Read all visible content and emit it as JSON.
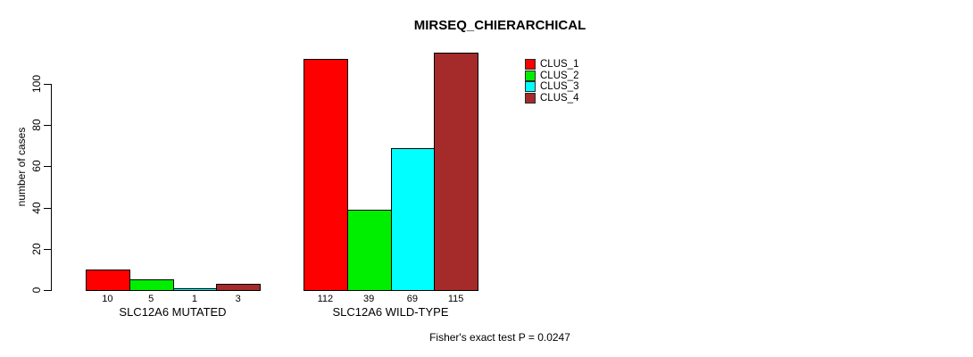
{
  "chart_data": {
    "type": "bar",
    "title": "MIRSEQ_CHIERARCHICAL",
    "ylabel": "number of cases",
    "xlabel": "",
    "yticks": [
      0,
      20,
      40,
      60,
      80,
      100
    ],
    "ylim": [
      0,
      117
    ],
    "grid": false,
    "legend_position": "top-right",
    "categories": [
      "SLC12A6 MUTATED",
      "SLC12A6 WILD-TYPE"
    ],
    "series": [
      {
        "name": "CLUS_1",
        "color": "#ff0000",
        "values": [
          10,
          112
        ]
      },
      {
        "name": "CLUS_2",
        "color": "#00ee00",
        "values": [
          5,
          39
        ]
      },
      {
        "name": "CLUS_3",
        "color": "#00ffff",
        "values": [
          1,
          69
        ]
      },
      {
        "name": "CLUS_4",
        "color": "#a52a2a",
        "values": [
          3,
          115
        ]
      }
    ],
    "bar_value_labels": {
      "SLC12A6 MUTATED": [
        10,
        5,
        1,
        3
      ],
      "SLC12A6 WILD-TYPE": [
        112,
        39,
        69,
        115
      ]
    },
    "annotation": "Fisher's exact test P = 0.0247"
  },
  "colors": {
    "background": "#ffffff",
    "axis": "#000000",
    "text": "#000000"
  }
}
